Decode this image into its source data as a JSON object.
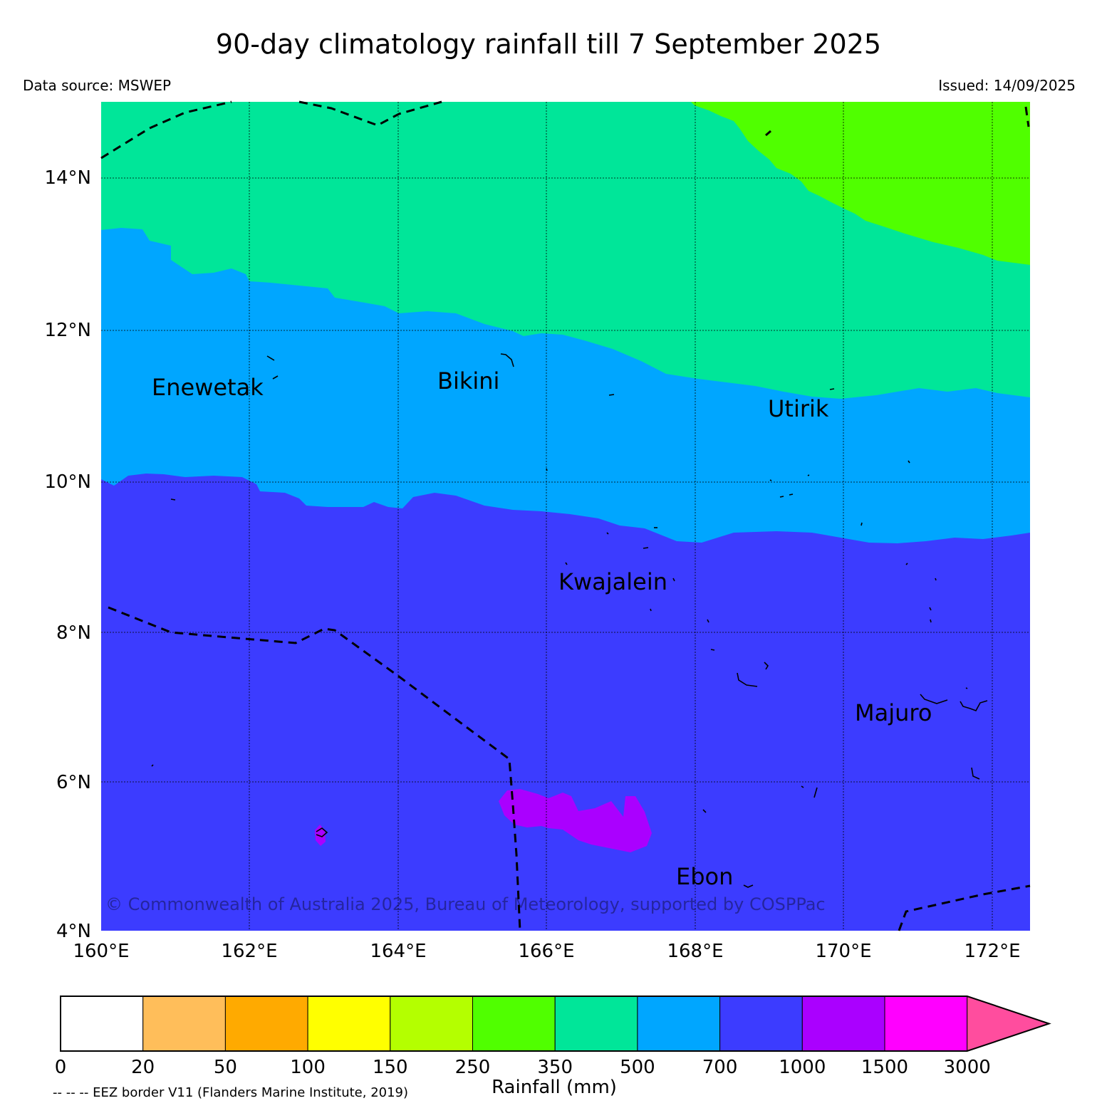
{
  "title": "90-day climatology rainfall till 7 September 2025",
  "data_source": "Data source: MSWEP",
  "issued": "Issued: 14/09/2025",
  "copyright": "© Commonwealth of Australia 2025, Bureau of Meteorology, supported by COSPPac",
  "map": {
    "lon_labels": [
      "160°E",
      "162°E",
      "164°E",
      "166°E",
      "168°E",
      "170°E",
      "172°E"
    ],
    "lat_labels": [
      "14°N",
      "12°N",
      "10°N",
      "8°N",
      "6°N",
      "4°N"
    ],
    "places": {
      "enewetak": "Enewetak",
      "bikini": "Bikini",
      "utirik": "Utirik",
      "kwajalein": "Kwajalein",
      "majuro": "Majuro",
      "ebon": "Ebon"
    },
    "zone_colors": {
      "c350_500": "#00e699",
      "c250_350": "#50ff00",
      "c500_700": "#00a6ff",
      "c700_1000": "#3c3cff",
      "c1000_1500": "#aa00ff"
    }
  },
  "colorbar": {
    "title": "Rainfall (mm)",
    "ticks": [
      "0",
      "20",
      "50",
      "100",
      "150",
      "250",
      "350",
      "500",
      "700",
      "1000",
      "1500",
      "3000"
    ],
    "colors": [
      "#ffffff",
      "#ffbe5a",
      "#ffaa00",
      "#ffff00",
      "#b4ff00",
      "#50ff00",
      "#00e699",
      "#00a6ff",
      "#3c3cff",
      "#aa00ff",
      "#ff00ff"
    ],
    "extend_color": "#ff4d9e"
  },
  "eez_note": "-- -- -- EEZ border V11 (Flanders Marine Institute, 2019)"
}
